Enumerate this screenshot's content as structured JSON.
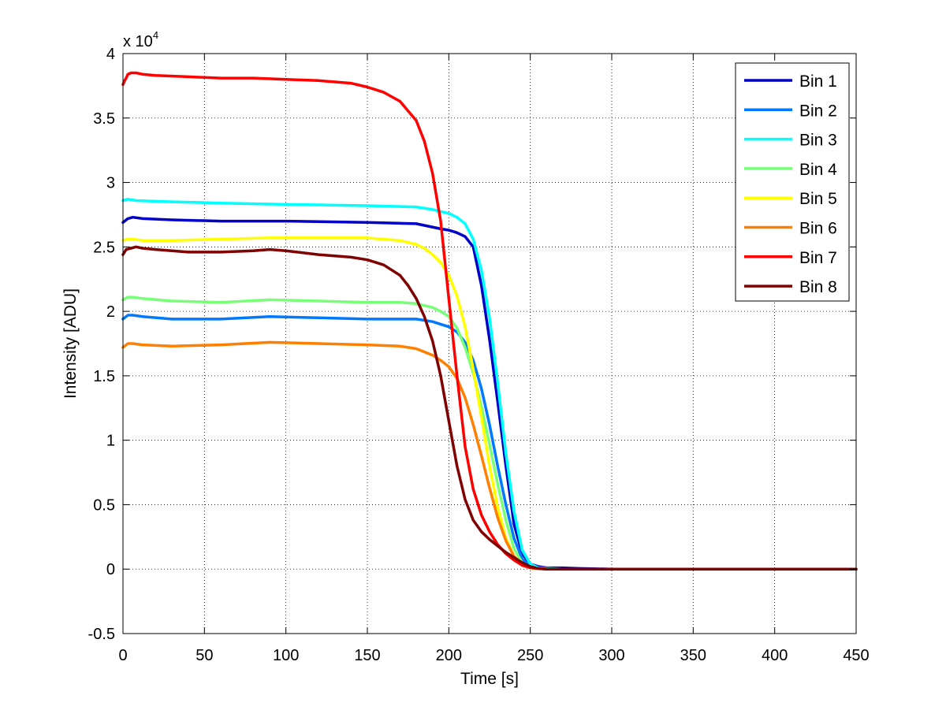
{
  "chart_data": {
    "type": "line",
    "title": "",
    "xlabel": "Time [s]",
    "ylabel": "Intensity [ADU]",
    "y_exponent_label": "x 10",
    "y_exponent_power": "4",
    "xlim": [
      0,
      450
    ],
    "ylim": [
      -0.5,
      4
    ],
    "x_ticks": [
      0,
      50,
      100,
      150,
      200,
      250,
      300,
      350,
      400,
      450
    ],
    "x_tick_labels": [
      "0",
      "50",
      "100",
      "150",
      "200",
      "250",
      "300",
      "350",
      "400",
      "450"
    ],
    "y_ticks": [
      -0.5,
      0,
      0.5,
      1,
      1.5,
      2,
      2.5,
      3,
      3.5,
      4
    ],
    "y_tick_labels": [
      "-0.5",
      "0",
      "0.5",
      "1",
      "1.5",
      "2",
      "2.5",
      "3",
      "3.5",
      "4"
    ],
    "grid": true,
    "legend_position": "top-right",
    "series": [
      {
        "name": "Bin 1",
        "color": "#0000c8",
        "x": [
          0,
          3,
          6,
          12,
          30,
          60,
          100,
          150,
          180,
          195,
          200,
          205,
          210,
          215,
          220,
          225,
          230,
          235,
          240,
          245,
          250,
          255,
          260,
          270,
          280,
          300,
          350,
          400,
          450
        ],
        "y": [
          2.69,
          2.72,
          2.73,
          2.72,
          2.71,
          2.7,
          2.7,
          2.69,
          2.68,
          2.64,
          2.63,
          2.61,
          2.58,
          2.5,
          2.2,
          1.78,
          1.3,
          0.8,
          0.35,
          0.12,
          0.04,
          0.02,
          0.01,
          0.01,
          0.005,
          0,
          0,
          0,
          0
        ]
      },
      {
        "name": "Bin 2",
        "color": "#0078ff",
        "x": [
          0,
          3,
          6,
          12,
          30,
          60,
          90,
          120,
          150,
          180,
          190,
          200,
          205,
          210,
          215,
          220,
          225,
          230,
          235,
          240,
          245,
          250,
          255,
          260,
          280,
          300,
          350,
          400,
          450
        ],
        "y": [
          1.94,
          1.97,
          1.97,
          1.96,
          1.94,
          1.94,
          1.96,
          1.95,
          1.94,
          1.94,
          1.92,
          1.88,
          1.84,
          1.76,
          1.62,
          1.4,
          1.12,
          0.8,
          0.5,
          0.24,
          0.08,
          0.02,
          0.005,
          0,
          0,
          0,
          0,
          0,
          0
        ]
      },
      {
        "name": "Bin 3",
        "color": "#00ffff",
        "x": [
          0,
          3,
          8,
          30,
          60,
          100,
          150,
          180,
          190,
          200,
          205,
          210,
          215,
          220,
          225,
          230,
          235,
          240,
          245,
          250,
          255,
          260,
          270,
          300,
          350,
          400,
          450
        ],
        "y": [
          2.86,
          2.87,
          2.86,
          2.85,
          2.84,
          2.83,
          2.82,
          2.81,
          2.79,
          2.76,
          2.73,
          2.68,
          2.56,
          2.32,
          1.95,
          1.45,
          0.9,
          0.45,
          0.15,
          0.04,
          0.01,
          0.005,
          0,
          0,
          0,
          0,
          0
        ]
      },
      {
        "name": "Bin 4",
        "color": "#78ff78",
        "x": [
          0,
          3,
          6,
          12,
          30,
          60,
          90,
          120,
          150,
          170,
          180,
          190,
          195,
          200,
          205,
          210,
          215,
          220,
          225,
          230,
          235,
          240,
          245,
          250,
          255,
          260,
          300,
          350,
          400,
          450
        ],
        "y": [
          2.09,
          2.11,
          2.11,
          2.1,
          2.08,
          2.07,
          2.09,
          2.08,
          2.07,
          2.07,
          2.06,
          2.03,
          2.0,
          1.96,
          1.87,
          1.72,
          1.52,
          1.26,
          0.97,
          0.66,
          0.38,
          0.16,
          0.05,
          0.01,
          0.005,
          0,
          0,
          0,
          0,
          0
        ]
      },
      {
        "name": "Bin 5",
        "color": "#ffff00",
        "x": [
          0,
          3,
          6,
          12,
          30,
          60,
          90,
          120,
          150,
          170,
          180,
          185,
          190,
          195,
          200,
          205,
          210,
          215,
          220,
          225,
          230,
          235,
          240,
          245,
          250,
          255,
          260,
          300,
          350,
          400,
          450
        ],
        "y": [
          2.55,
          2.56,
          2.56,
          2.55,
          2.55,
          2.56,
          2.57,
          2.57,
          2.57,
          2.55,
          2.52,
          2.49,
          2.44,
          2.38,
          2.28,
          2.12,
          1.88,
          1.55,
          1.18,
          0.8,
          0.48,
          0.24,
          0.1,
          0.03,
          0.01,
          0,
          0,
          0,
          0,
          0,
          0
        ]
      },
      {
        "name": "Bin 6",
        "color": "#ff8000",
        "x": [
          0,
          3,
          6,
          12,
          30,
          60,
          90,
          120,
          150,
          170,
          180,
          190,
          195,
          200,
          205,
          210,
          215,
          220,
          225,
          230,
          235,
          240,
          245,
          250,
          255,
          260,
          300,
          350,
          400,
          450
        ],
        "y": [
          1.72,
          1.75,
          1.75,
          1.74,
          1.73,
          1.74,
          1.76,
          1.75,
          1.74,
          1.73,
          1.71,
          1.66,
          1.62,
          1.57,
          1.48,
          1.33,
          1.12,
          0.88,
          0.63,
          0.4,
          0.22,
          0.1,
          0.04,
          0.01,
          0.005,
          0,
          0,
          0,
          0,
          0
        ]
      },
      {
        "name": "Bin 7",
        "color": "#ff0000",
        "x": [
          0,
          1,
          2,
          3,
          5,
          8,
          12,
          20,
          40,
          60,
          80,
          100,
          120,
          140,
          150,
          160,
          170,
          180,
          185,
          190,
          195,
          200,
          205,
          210,
          215,
          220,
          225,
          230,
          235,
          240,
          245,
          250,
          255,
          260,
          270,
          300,
          350,
          400,
          450
        ],
        "y": [
          3.76,
          3.79,
          3.81,
          3.84,
          3.85,
          3.85,
          3.84,
          3.83,
          3.82,
          3.81,
          3.81,
          3.8,
          3.79,
          3.77,
          3.74,
          3.7,
          3.63,
          3.48,
          3.32,
          3.07,
          2.7,
          2.1,
          1.5,
          0.95,
          0.62,
          0.42,
          0.29,
          0.19,
          0.12,
          0.07,
          0.03,
          0.01,
          0.005,
          0,
          0,
          0,
          0,
          0,
          0
        ]
      },
      {
        "name": "Bin 8",
        "color": "#800000",
        "x": [
          0,
          2,
          5,
          8,
          12,
          20,
          30,
          40,
          60,
          80,
          90,
          100,
          120,
          140,
          150,
          160,
          170,
          175,
          180,
          185,
          190,
          195,
          200,
          205,
          210,
          215,
          220,
          225,
          230,
          235,
          240,
          245,
          250,
          255,
          260,
          300,
          350,
          400,
          450
        ],
        "y": [
          2.44,
          2.48,
          2.49,
          2.5,
          2.49,
          2.48,
          2.47,
          2.46,
          2.46,
          2.47,
          2.48,
          2.47,
          2.44,
          2.42,
          2.4,
          2.36,
          2.28,
          2.2,
          2.1,
          1.96,
          1.77,
          1.5,
          1.15,
          0.8,
          0.54,
          0.38,
          0.29,
          0.23,
          0.18,
          0.13,
          0.09,
          0.05,
          0.02,
          0.005,
          0,
          0,
          0,
          0,
          0
        ]
      }
    ]
  }
}
